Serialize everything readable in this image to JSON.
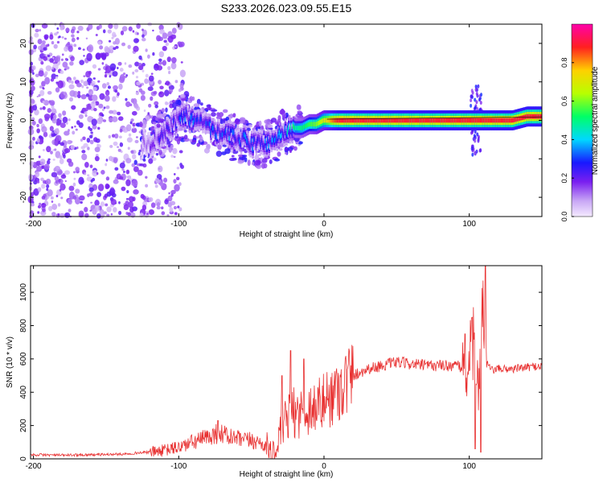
{
  "title": "S233.2026.023.09.55.E15",
  "chart_data": [
    {
      "type": "heatmap",
      "xlabel": "Height of straight line (km)",
      "ylabel": "Frequency (Hz)",
      "xlim": [
        -202,
        150
      ],
      "ylim": [
        -25,
        25
      ],
      "xticks": [
        -200,
        -100,
        0,
        100
      ],
      "yticks": [
        -20,
        -10,
        0,
        10,
        20
      ],
      "colorbar": {
        "label": "Normalized spectral amplitude",
        "range": [
          0,
          1
        ],
        "ticks": [
          "0.0",
          "0.2",
          "0.4",
          "0.6",
          "0.8"
        ]
      },
      "ridge": {
        "x": [
          -120,
          -110,
          -100,
          -95,
          -90,
          -85,
          -80,
          -75,
          -70,
          -65,
          -60,
          -55,
          -50,
          -45,
          -40,
          -35,
          -30,
          -25,
          -20,
          -15,
          -10,
          -5,
          0,
          5,
          10,
          20,
          30,
          40,
          50,
          60,
          70,
          80,
          90,
          100,
          105,
          110,
          120,
          130,
          140,
          150
        ],
        "y": [
          -6,
          -3,
          0,
          1,
          0,
          -1,
          -2,
          -3,
          -3,
          -4,
          -5,
          -5,
          -6,
          -6,
          -6,
          -5,
          -4,
          -3,
          -2,
          -2,
          -1,
          -1,
          0,
          0,
          0,
          0,
          0,
          0,
          0,
          0,
          0,
          0,
          0,
          0,
          0,
          0,
          0,
          0,
          1,
          1
        ]
      },
      "ridge_strength": {
        "x": [
          -130,
          -100,
          -60,
          -30,
          -20,
          -5,
          10,
          150
        ],
        "amplitude": [
          0.1,
          0.3,
          0.3,
          0.35,
          0.45,
          0.6,
          0.9,
          0.9
        ]
      }
    },
    {
      "type": "line",
      "xlabel": "Height of straight line (km)",
      "ylabel": "SNR (10 * v/v)",
      "xlim": [
        -202,
        150
      ],
      "ylim": [
        0,
        1160
      ],
      "xticks": [
        -200,
        -100,
        0,
        100
      ],
      "yticks": [
        0,
        200,
        400,
        600,
        800,
        1000
      ],
      "series": [
        {
          "name": "SNR",
          "color": "#e83030",
          "x": [
            -202,
            -180,
            -160,
            -140,
            -130,
            -120,
            -110,
            -100,
            -90,
            -80,
            -75,
            -70,
            -65,
            -60,
            -55,
            -50,
            -45,
            -40,
            -36,
            -34,
            -30,
            -25,
            -20,
            -15,
            -10,
            -5,
            0,
            10,
            20,
            30,
            40,
            50,
            60,
            70,
            80,
            90,
            98,
            100,
            103,
            105,
            107,
            109,
            111,
            115,
            120,
            130,
            140,
            150
          ],
          "values": [
            25,
            22,
            25,
            28,
            35,
            40,
            50,
            70,
            100,
            130,
            150,
            150,
            130,
            120,
            110,
            110,
            100,
            80,
            50,
            20,
            150,
            250,
            280,
            280,
            300,
            320,
            340,
            420,
            500,
            540,
            560,
            580,
            570,
            560,
            560,
            560,
            540,
            600,
            700,
            350,
            550,
            1000,
            600,
            530,
            540,
            540,
            550,
            560
          ],
          "spikes": [
            {
              "x": -73,
              "y": 230
            },
            {
              "x": -29,
              "y": 500
            },
            {
              "x": -23,
              "y": 650
            },
            {
              "x": -14,
              "y": 600
            },
            {
              "x": 97,
              "y": 750
            },
            {
              "x": 102,
              "y": 850
            },
            {
              "x": 104,
              "y": 60
            },
            {
              "x": 108,
              "y": 40
            },
            {
              "x": 111,
              "y": 1160
            }
          ]
        }
      ]
    }
  ]
}
